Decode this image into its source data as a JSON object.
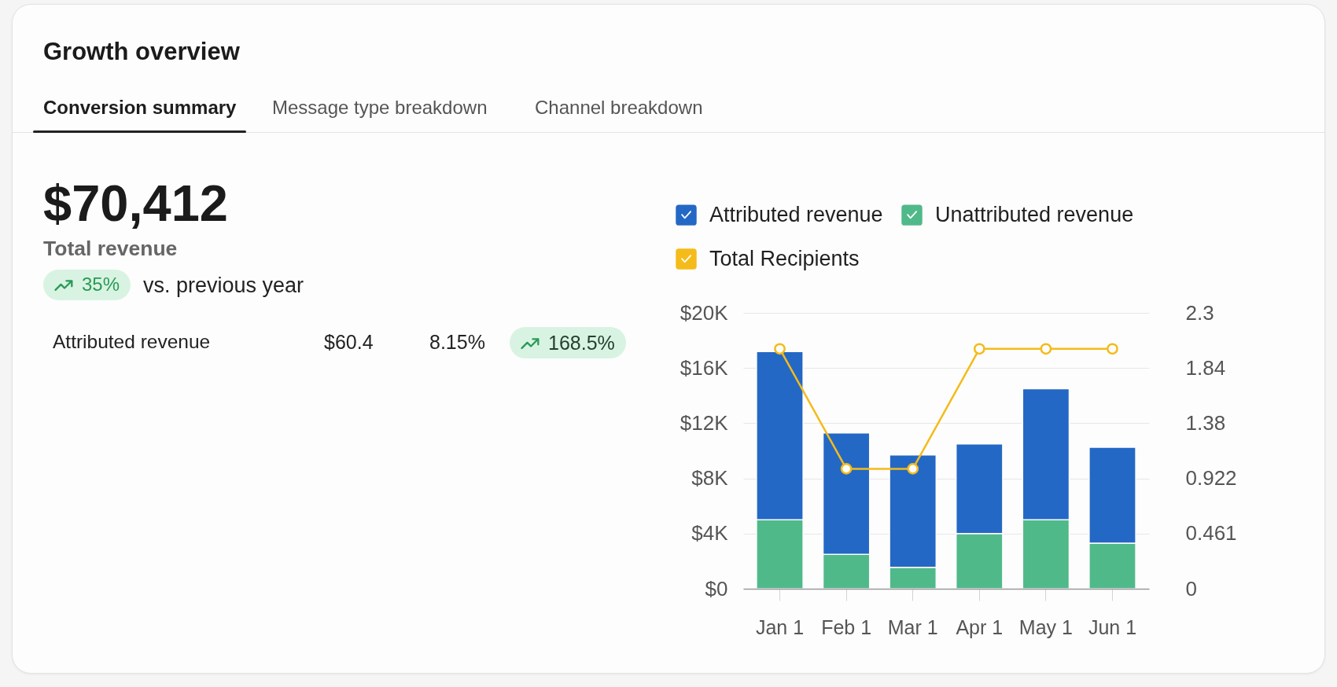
{
  "chart_data": [
    {
      "type": "other",
      "title": "Growth overview",
      "annotations": [
        "Conversion summary",
        "Message type breakdown",
        "Channel breakdown",
        "$70,412",
        "Total revenue",
        "35%",
        "vs. previous year",
        "Attributed revenue",
        "$60.4",
        "8.15%",
        "168.5%"
      ]
    },
    {
      "type": "bar",
      "stacked": true,
      "categories": [
        "Jan 1",
        "Feb 1",
        "Mar 1",
        "Apr 1",
        "May 1",
        "Jun 1"
      ],
      "series": [
        {
          "name": "Unattributed revenue",
          "color": "#50b98a",
          "values": [
            5000,
            2500,
            1550,
            4000,
            5000,
            3300
          ]
        },
        {
          "name": "Attributed revenue",
          "color": "#2468c5",
          "values": [
            12200,
            8800,
            8150,
            6500,
            9500,
            6950
          ]
        },
        {
          "name": "Total Recipients",
          "type": "line",
          "axis": "y2",
          "color": "#f5bb1a",
          "values": [
            2,
            1,
            1,
            2,
            2,
            2
          ]
        }
      ],
      "ylim": [
        0,
        20000
      ],
      "yticks": [
        {
          "value": 0,
          "label": "$0"
        },
        {
          "value": 4000,
          "label": "$4K"
        },
        {
          "value": 8000,
          "label": "$8K"
        },
        {
          "value": 12000,
          "label": "$12K"
        },
        {
          "value": 16000,
          "label": "$16K"
        },
        {
          "value": 20000,
          "label": "$20K"
        }
      ],
      "y2lim": [
        0,
        2.3
      ],
      "y2ticks": [
        0,
        0.461,
        0.922,
        1.38,
        1.84,
        2.3
      ],
      "grid": "y",
      "legend": "top",
      "marker": "circle"
    }
  ]
}
